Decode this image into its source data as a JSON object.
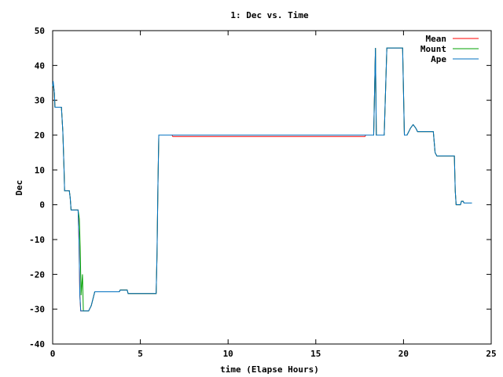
{
  "chart_data": {
    "type": "line",
    "title": "1: Dec vs. Time",
    "xlabel": "time (Elapse Hours)",
    "ylabel": "Dec",
    "xlim": [
      0,
      25
    ],
    "ylim": [
      -40,
      50
    ],
    "xticks": [
      0,
      5,
      10,
      15,
      20,
      25
    ],
    "yticks": [
      -40,
      -30,
      -20,
      -10,
      0,
      10,
      20,
      30,
      40,
      50
    ],
    "grid": false,
    "legend_position": "top-right",
    "series": [
      {
        "name": "Mean",
        "color": "#ff0000",
        "points": [
          [
            0,
            34
          ],
          [
            0.03,
            35
          ],
          [
            0.1,
            32
          ],
          [
            0.13,
            28
          ],
          [
            0.5,
            28
          ],
          [
            0.58,
            21
          ],
          [
            0.65,
            10
          ],
          [
            0.68,
            4
          ],
          [
            0.95,
            4
          ],
          [
            1.0,
            2
          ],
          [
            1.05,
            -1.5
          ],
          [
            1.45,
            -1.5
          ],
          [
            1.5,
            -10
          ],
          [
            1.55,
            -26
          ],
          [
            1.6,
            -30.5
          ],
          [
            2.05,
            -30.5
          ],
          [
            2.2,
            -29
          ],
          [
            2.3,
            -27
          ],
          [
            2.4,
            -25
          ],
          [
            3.8,
            -25
          ],
          [
            3.85,
            -24.5
          ],
          [
            4.25,
            -24.5
          ],
          [
            4.3,
            -25.5
          ],
          [
            5.9,
            -25.5
          ],
          [
            5.95,
            -14
          ],
          [
            6.0,
            5
          ],
          [
            6.05,
            20
          ],
          [
            6.8,
            20
          ],
          [
            6.85,
            19.6
          ],
          [
            17.8,
            19.6
          ],
          [
            17.85,
            20
          ],
          [
            18.3,
            20
          ],
          [
            18.4,
            45
          ],
          [
            18.45,
            20
          ],
          [
            18.9,
            20
          ],
          [
            19.05,
            45
          ],
          [
            19.95,
            45
          ],
          [
            20.05,
            20
          ],
          [
            20.2,
            20
          ],
          [
            20.4,
            22
          ],
          [
            20.55,
            23
          ],
          [
            20.7,
            22
          ],
          [
            20.8,
            21
          ],
          [
            21.7,
            21
          ],
          [
            21.8,
            15
          ],
          [
            21.9,
            14
          ],
          [
            22.9,
            14
          ],
          [
            22.95,
            4
          ],
          [
            23.0,
            0
          ],
          [
            23.25,
            0
          ],
          [
            23.3,
            1
          ],
          [
            23.4,
            1
          ],
          [
            23.45,
            0.5
          ],
          [
            23.9,
            0.5
          ]
        ]
      },
      {
        "name": "Mount",
        "color": "#00a000",
        "points": [
          [
            0,
            34
          ],
          [
            0.03,
            35
          ],
          [
            0.1,
            32
          ],
          [
            0.13,
            28
          ],
          [
            0.5,
            28
          ],
          [
            0.58,
            21
          ],
          [
            0.65,
            10
          ],
          [
            0.68,
            4
          ],
          [
            0.95,
            4
          ],
          [
            1.0,
            2
          ],
          [
            1.05,
            -1.5
          ],
          [
            1.45,
            -1.5
          ],
          [
            1.52,
            -4
          ],
          [
            1.57,
            -12
          ],
          [
            1.62,
            -26
          ],
          [
            1.7,
            -20
          ],
          [
            1.75,
            -30.5
          ],
          [
            2.05,
            -30.5
          ],
          [
            2.2,
            -29
          ],
          [
            2.3,
            -27
          ],
          [
            2.4,
            -25
          ],
          [
            3.8,
            -25
          ],
          [
            3.85,
            -24.5
          ],
          [
            4.25,
            -24.5
          ],
          [
            4.3,
            -25.5
          ],
          [
            5.9,
            -25.5
          ],
          [
            5.95,
            -14
          ],
          [
            6.0,
            5
          ],
          [
            6.05,
            20
          ],
          [
            18.3,
            20
          ],
          [
            18.4,
            45
          ],
          [
            18.45,
            20
          ],
          [
            18.9,
            20
          ],
          [
            19.05,
            45
          ],
          [
            19.95,
            45
          ],
          [
            20.05,
            20
          ],
          [
            20.2,
            20
          ],
          [
            20.4,
            22
          ],
          [
            20.55,
            23
          ],
          [
            20.7,
            22
          ],
          [
            20.8,
            21
          ],
          [
            21.7,
            21
          ],
          [
            21.8,
            15
          ],
          [
            21.9,
            14
          ],
          [
            22.9,
            14
          ],
          [
            22.95,
            4
          ],
          [
            23.0,
            0
          ],
          [
            23.25,
            0
          ],
          [
            23.3,
            1
          ],
          [
            23.4,
            1
          ],
          [
            23.45,
            0.5
          ],
          [
            23.9,
            0.5
          ]
        ]
      },
      {
        "name": "Ape",
        "color": "#0070c0",
        "points": [
          [
            0,
            34
          ],
          [
            0.03,
            35.5
          ],
          [
            0.1,
            32
          ],
          [
            0.13,
            28
          ],
          [
            0.5,
            28
          ],
          [
            0.58,
            21
          ],
          [
            0.65,
            10
          ],
          [
            0.68,
            4
          ],
          [
            0.95,
            4
          ],
          [
            1.0,
            2
          ],
          [
            1.05,
            -1.5
          ],
          [
            1.45,
            -1.5
          ],
          [
            1.5,
            -10
          ],
          [
            1.55,
            -26
          ],
          [
            1.6,
            -30.5
          ],
          [
            2.05,
            -30.5
          ],
          [
            2.2,
            -29
          ],
          [
            2.3,
            -27
          ],
          [
            2.4,
            -25
          ],
          [
            3.8,
            -25
          ],
          [
            3.85,
            -24.5
          ],
          [
            4.25,
            -24.5
          ],
          [
            4.3,
            -25.5
          ],
          [
            5.9,
            -25.5
          ],
          [
            5.95,
            -14
          ],
          [
            6.0,
            5
          ],
          [
            6.05,
            20
          ],
          [
            18.3,
            20
          ],
          [
            18.4,
            45
          ],
          [
            18.45,
            20
          ],
          [
            18.9,
            20
          ],
          [
            19.05,
            45
          ],
          [
            19.95,
            45
          ],
          [
            20.05,
            20
          ],
          [
            20.2,
            20
          ],
          [
            20.4,
            22
          ],
          [
            20.55,
            23
          ],
          [
            20.7,
            22
          ],
          [
            20.8,
            21
          ],
          [
            21.7,
            21
          ],
          [
            21.8,
            15
          ],
          [
            21.9,
            14
          ],
          [
            22.9,
            14
          ],
          [
            22.95,
            4
          ],
          [
            23.0,
            0
          ],
          [
            23.25,
            0
          ],
          [
            23.3,
            1
          ],
          [
            23.4,
            1
          ],
          [
            23.45,
            0.5
          ],
          [
            23.9,
            0.5
          ]
        ]
      }
    ]
  }
}
